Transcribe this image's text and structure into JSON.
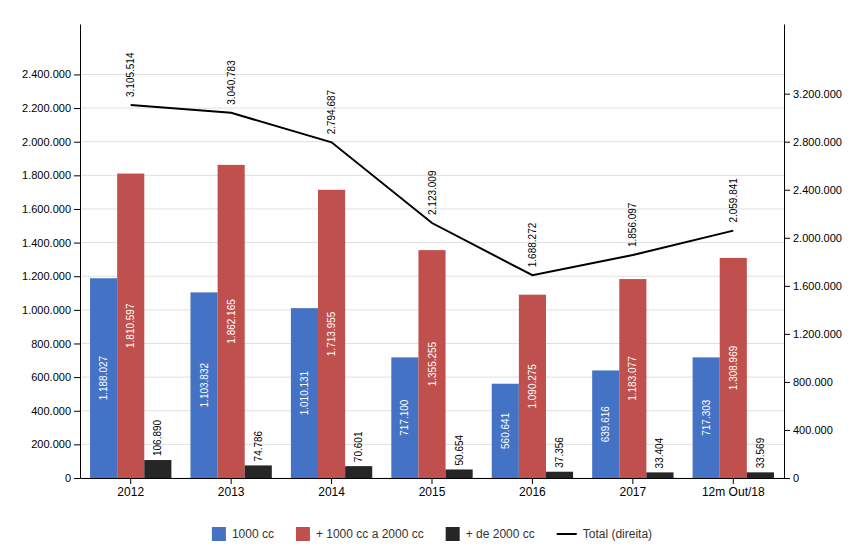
{
  "chart_data": {
    "type": "bar",
    "categories": [
      "2012",
      "2013",
      "2014",
      "2015",
      "2016",
      "2017",
      "12m Out/18"
    ],
    "series": [
      {
        "name": "1000 cc",
        "color": "#4472C4",
        "values": [
          1188027,
          1103832,
          1010131,
          717100,
          560641,
          639616,
          717303
        ],
        "value_labels": [
          "1.188.027",
          "1.103.832",
          "1.010.131",
          "717.100",
          "560.641",
          "639.616",
          "717.303"
        ]
      },
      {
        "name": "+ 1000 cc a 2000 cc",
        "color": "#C0504D",
        "values": [
          1810597,
          1862165,
          1713955,
          1355255,
          1090275,
          1183077,
          1308969
        ],
        "value_labels": [
          "1.810.597",
          "1.862.165",
          "1.713.955",
          "1.355.255",
          "1.090.275",
          "1.183.077",
          "1.308.969"
        ]
      },
      {
        "name": "+ de 2000 cc",
        "color": "#262626",
        "values": [
          106890,
          74786,
          70601,
          50654,
          37356,
          33404,
          33569
        ],
        "value_labels": [
          "106.890",
          "74.786",
          "70.601",
          "50.654",
          "37.356",
          "33.404",
          "33.569"
        ]
      },
      {
        "name": "Total (direita)",
        "type": "line",
        "axis": "y2",
        "color": "#000000",
        "values": [
          3105514,
          3040783,
          2794687,
          2123009,
          1688272,
          1856097,
          2059841
        ],
        "value_labels": [
          "3.105.514",
          "3.040.783",
          "2.794.687",
          "2.123.009",
          "1.688.272",
          "1.856.097",
          "2.059.841"
        ]
      }
    ],
    "ylim": [
      0,
      2700000
    ],
    "yticks": [
      0,
      {
        "value": 200000,
        "label": "200.000"
      },
      {
        "value": 400000,
        "label": "400.000"
      },
      {
        "value": 600000,
        "label": "600.000"
      },
      {
        "value": 800000,
        "label": "800.000"
      },
      {
        "value": 1000000,
        "label": "1.000.000"
      },
      {
        "value": 1200000,
        "label": "1.200.000"
      },
      {
        "value": 1400000,
        "label": "1.400.000"
      },
      {
        "value": 1600000,
        "label": "1.600.000"
      },
      {
        "value": 1800000,
        "label": "1.800.000"
      },
      {
        "value": 2000000,
        "label": "2.000.000"
      },
      {
        "value": 2200000,
        "label": "2.200.000"
      },
      {
        "value": 2400000,
        "label": "2.400.000"
      }
    ],
    "y2lim": [
      0,
      3780000
    ],
    "y2ticks": [
      0,
      {
        "value": 400000,
        "label": "400.000"
      },
      {
        "value": 800000,
        "label": "800.000"
      },
      {
        "value": 1200000,
        "label": "1.200.000"
      },
      {
        "value": 1600000,
        "label": "1.600.000"
      },
      {
        "value": 2000000,
        "label": "2.000.000"
      },
      {
        "value": 2400000,
        "label": "2.400.000"
      },
      {
        "value": 2800000,
        "label": "2.800.000"
      },
      {
        "value": 3200000,
        "label": "3.200.000"
      }
    ],
    "grid": true,
    "legend": "bottom",
    "data_labels": true
  }
}
